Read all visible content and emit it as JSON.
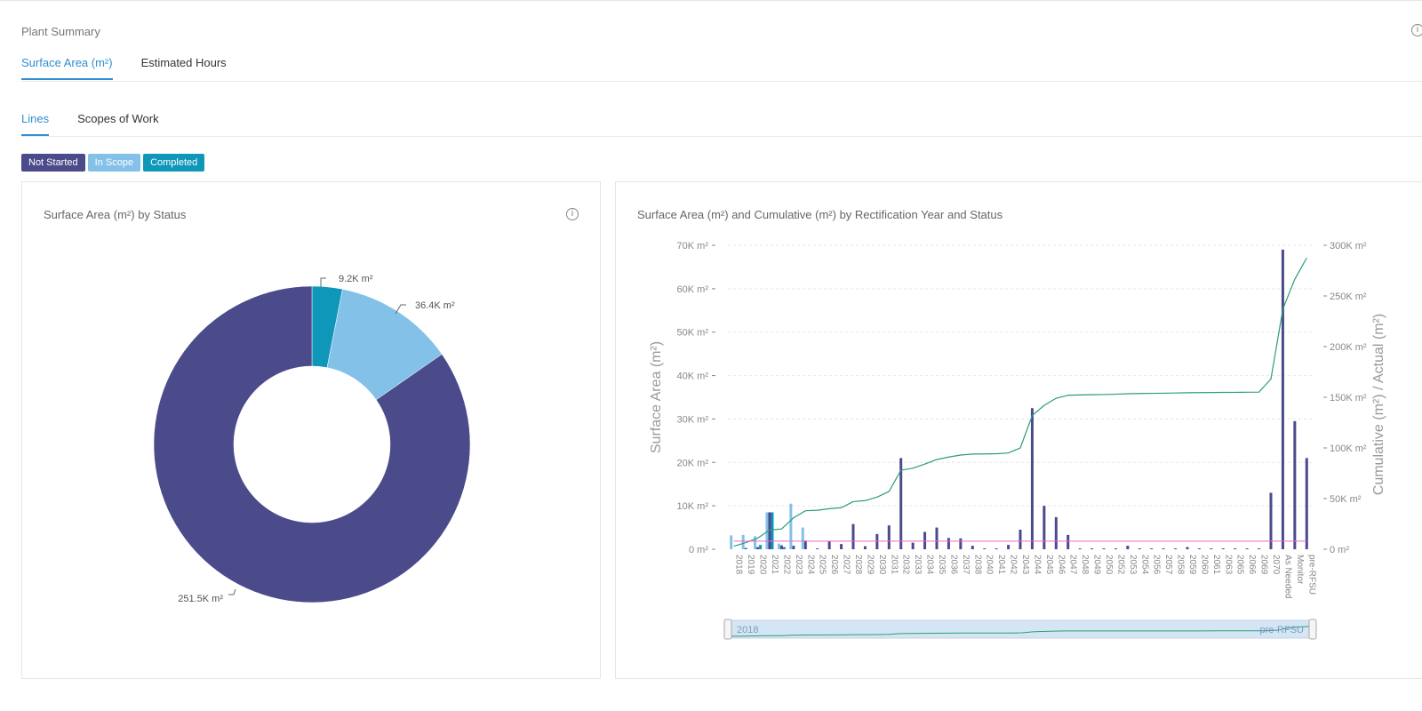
{
  "header": {
    "title": "Plant Summary",
    "info_symbol": "i",
    "tabs": [
      {
        "label": "Surface Area (m²)",
        "active": true
      },
      {
        "label": "Estimated Hours",
        "active": false
      }
    ]
  },
  "subtabs": [
    {
      "label": "Lines",
      "active": true
    },
    {
      "label": "Scopes of Work",
      "active": false
    }
  ],
  "legend": [
    {
      "label": "Not Started",
      "color": "#4b4a8b"
    },
    {
      "label": "In Scope",
      "color": "#84c1e8"
    },
    {
      "label": "Completed",
      "color": "#0f97b9"
    }
  ],
  "colors": {
    "not_started": "#4b4a8b",
    "in_scope": "#84c1e8",
    "completed": "#0f97b9",
    "cumulative": "#2a9d78",
    "actual": "#ee66cc",
    "accent": "#2f8fd0"
  },
  "donut_panel": {
    "title": "Surface Area (m²) by Status",
    "info_symbol": "i"
  },
  "combo_panel": {
    "title": "Surface Area (m²) and Cumulative (m²) by Rectification Year and Status"
  },
  "chart_data": [
    {
      "type": "pie",
      "title": "Surface Area (m²) by Status",
      "donut": true,
      "slices": [
        {
          "name": "Completed",
          "value": 9.2,
          "label": "9.2K m²",
          "color": "#0f97b9"
        },
        {
          "name": "In Scope",
          "value": 36.4,
          "label": "36.4K m²",
          "color": "#84c1e8"
        },
        {
          "name": "Not Started",
          "value": 251.5,
          "label": "251.5K m²",
          "color": "#4b4a8b"
        }
      ]
    },
    {
      "type": "bar",
      "title": "Surface Area (m²) and Cumulative (m²) by Rectification Year and Status",
      "ylabel": "Surface Area (m²)",
      "y2label": "Cumulative (m²) / Actual (m²)",
      "ylim": [
        0,
        70000
      ],
      "y2lim": [
        0,
        300000
      ],
      "yticks": [
        "0 m²",
        "10K m²",
        "20K m²",
        "30K m²",
        "40K m²",
        "50K m²",
        "60K m²",
        "70K m²"
      ],
      "y2ticks": [
        "0 m²",
        "50K m²",
        "100K m²",
        "150K m²",
        "200K m²",
        "250K m²",
        "300K m²"
      ],
      "categories": [
        "2018",
        "2019",
        "2020",
        "2021",
        "2022",
        "2023",
        "2024",
        "2025",
        "2026",
        "2027",
        "2028",
        "2029",
        "2030",
        "2031",
        "2032",
        "2033",
        "2034",
        "2035",
        "2036",
        "2037",
        "2038",
        "2040",
        "2041",
        "2042",
        "2043",
        "2044",
        "2045",
        "2046",
        "2047",
        "2048",
        "2049",
        "2050",
        "2052",
        "2053",
        "2054",
        "2056",
        "2057",
        "2058",
        "2059",
        "2060",
        "2061",
        "2063",
        "2065",
        "2066",
        "2069",
        "2070",
        "As Needed",
        "Monitor",
        "pre-RFSU"
      ],
      "series": [
        {
          "name": "Not Started",
          "values": [
            0,
            300,
            500,
            8500,
            900,
            800,
            2000,
            200,
            1800,
            1200,
            5800,
            700,
            3500,
            5500,
            21000,
            1500,
            4000,
            5000,
            2600,
            2500,
            800,
            200,
            200,
            1000,
            4500,
            32500,
            10000,
            7400,
            3300,
            200,
            200,
            200,
            200,
            800,
            200,
            200,
            200,
            200,
            500,
            200,
            200,
            200,
            200,
            200,
            200,
            13000,
            69000,
            29500,
            21000
          ]
        },
        {
          "name": "In Scope",
          "values": [
            3200,
            3300,
            3000,
            8500,
            1300,
            10500,
            5000,
            0,
            0,
            0,
            0,
            0,
            0,
            0,
            0,
            0,
            0,
            0,
            0,
            0,
            0,
            0,
            0,
            0,
            0,
            0,
            0,
            0,
            0,
            0,
            0,
            0,
            0,
            0,
            0,
            0,
            0,
            0,
            0,
            0,
            0,
            0,
            0,
            0,
            0,
            0,
            0,
            0,
            0
          ]
        },
        {
          "name": "Completed",
          "values": [
            0,
            0,
            1000,
            8500,
            500,
            0,
            0,
            0,
            0,
            0,
            0,
            0,
            0,
            0,
            0,
            0,
            0,
            0,
            0,
            0,
            0,
            0,
            0,
            0,
            0,
            0,
            0,
            0,
            0,
            0,
            0,
            0,
            0,
            0,
            0,
            0,
            0,
            0,
            0,
            0,
            0,
            0,
            0,
            0,
            0,
            0,
            0,
            0,
            0
          ]
        },
        {
          "name": "Cumulative",
          "axis": "y2",
          "values": [
            3000,
            6500,
            11000,
            19000,
            20000,
            31000,
            38000,
            38500,
            40000,
            41000,
            47000,
            48000,
            51500,
            57000,
            78000,
            80000,
            84000,
            88500,
            91000,
            93000,
            94000,
            94100,
            94300,
            95000,
            100000,
            132000,
            142000,
            149000,
            152000,
            152300,
            152500,
            152700,
            153000,
            153500,
            153700,
            153900,
            154000,
            154200,
            154500,
            154600,
            154700,
            154800,
            154900,
            155000,
            155100,
            168000,
            237000,
            266500,
            287500
          ]
        },
        {
          "name": "Actual",
          "axis": "y2",
          "values": [
            8000,
            8000,
            8000,
            8000,
            8000,
            8000,
            8000,
            8000,
            8000,
            8000,
            8000,
            8000,
            8000,
            8000,
            8000,
            8000,
            8000,
            8000,
            8000,
            8000,
            8000,
            8000,
            8000,
            8000,
            8000,
            8000,
            8000,
            8000,
            8000,
            8000,
            8000,
            8000,
            8000,
            8000,
            8000,
            8000,
            8000,
            8000,
            8000,
            8000,
            8000,
            8000,
            8000,
            8000,
            8000,
            8000,
            8000,
            8000,
            8000
          ]
        }
      ],
      "slider": {
        "start_label": "2018",
        "end_label": "pre-RFSU"
      }
    }
  ]
}
